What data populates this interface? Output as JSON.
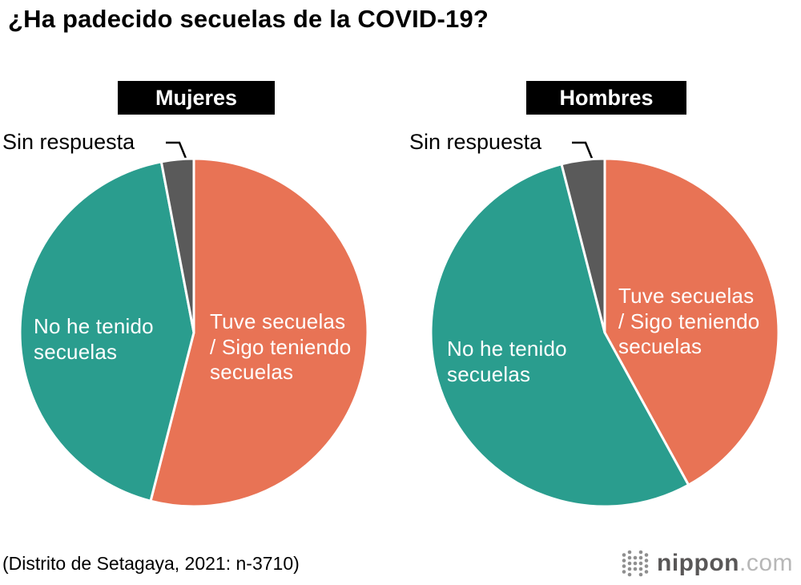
{
  "page": {
    "title": "¿Ha padecido secuelas de la COVID-19?",
    "source_note": "(Distrito de Setagaya, 2021: n-3710)",
    "logo": {
      "name": "nippon",
      "tld": ".com"
    }
  },
  "colors": {
    "had_sequelae": "#e87355",
    "no_sequelae": "#2a9d8e",
    "no_answer": "#5a5a5a",
    "title_badge_bg": "#000000",
    "title_badge_text": "#ffffff"
  },
  "chart_data": [
    {
      "type": "pie",
      "title": "Mujeres",
      "callout": "Sin respuesta",
      "start_angle_deg": 0,
      "direction": "clockwise",
      "slices": [
        {
          "label": "Tuve secuelas / Sigo teniendo secuelas",
          "lines": [
            "Tuve secuelas",
            "/ Sigo teniendo",
            "secuelas"
          ],
          "value": 54,
          "color": "#e87355"
        },
        {
          "label": "No he tenido secuelas",
          "lines": [
            "No he tenido",
            "secuelas"
          ],
          "value": 43,
          "color": "#2a9d8e"
        },
        {
          "label": "Sin respuesta",
          "lines": [],
          "value": 3,
          "color": "#5a5a5a"
        }
      ]
    },
    {
      "type": "pie",
      "title": "Hombres",
      "callout": "Sin respuesta",
      "start_angle_deg": 0,
      "direction": "clockwise",
      "slices": [
        {
          "label": "Tuve secuelas / Sigo teniendo secuelas",
          "lines": [
            "Tuve secuelas",
            "/ Sigo teniendo",
            "secuelas"
          ],
          "value": 42,
          "color": "#e87355"
        },
        {
          "label": "No he tenido secuelas",
          "lines": [
            "No he tenido",
            "secuelas"
          ],
          "value": 54,
          "color": "#2a9d8e"
        },
        {
          "label": "Sin respuesta",
          "lines": [],
          "value": 4,
          "color": "#5a5a5a"
        }
      ]
    }
  ]
}
